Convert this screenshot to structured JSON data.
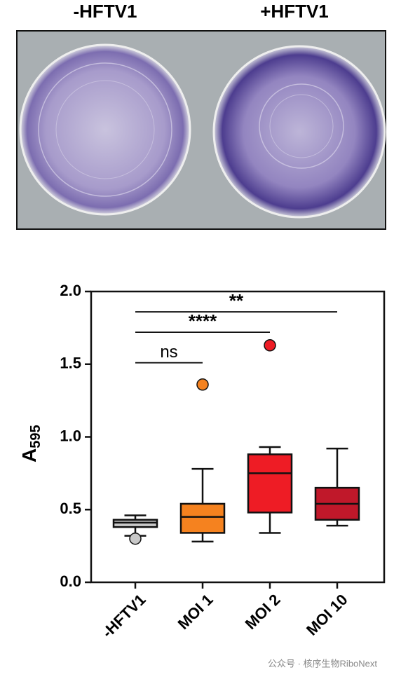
{
  "photo": {
    "labels": [
      "-HFTV1",
      "+HFTV1"
    ]
  },
  "chart_data": {
    "type": "box",
    "y_label": {
      "text": "A",
      "subscript": "595"
    },
    "categories": [
      "-HFTV1",
      "MOI 1",
      "MOI 2",
      "MOI 10"
    ],
    "boxes": [
      {
        "whisker_low": 0.32,
        "q1": 0.38,
        "median": 0.41,
        "q3": 0.43,
        "whisker_high": 0.46,
        "outliers": [
          0.3
        ],
        "color": "#c8c8c8"
      },
      {
        "whisker_low": 0.28,
        "q1": 0.34,
        "median": 0.45,
        "q3": 0.54,
        "whisker_high": 0.78,
        "outliers": [
          1.36
        ],
        "color": "#f5821f"
      },
      {
        "whisker_low": 0.34,
        "q1": 0.48,
        "median": 0.75,
        "q3": 0.88,
        "whisker_high": 0.93,
        "outliers": [
          1.63
        ],
        "color": "#ee1c25"
      },
      {
        "whisker_low": 0.39,
        "q1": 0.43,
        "median": 0.54,
        "q3": 0.65,
        "whisker_high": 0.92,
        "outliers": [],
        "color": "#c0182a"
      }
    ],
    "ylim": [
      0,
      2
    ],
    "yticks": [
      {
        "value": 0,
        "label": "0.0"
      },
      0.5,
      {
        "value": 1,
        "label": "1.0"
      },
      1.5,
      {
        "value": 2,
        "label": "2.0"
      }
    ],
    "annotations": [
      {
        "text": "ns",
        "from": 0,
        "to": 1,
        "y": 1.51
      },
      {
        "text": "****",
        "from": 0,
        "to": 2,
        "y": 1.72
      },
      {
        "text": "**",
        "from": 0,
        "to": 3,
        "y": 1.86
      }
    ]
  },
  "watermark": "公众号 · 核序生物RiboNext"
}
